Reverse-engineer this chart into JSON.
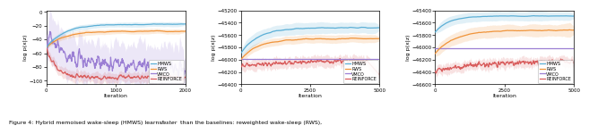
{
  "figure_caption_normal1": "Figure 4: Hybrid memoised wake-sleep (HMWS) learns ",
  "figure_caption_italic": "faster",
  "figure_caption_normal2": " than the baselines: reweighted wake-sleep (RWS),",
  "plots": [
    {
      "xlim": [
        0,
        2000
      ],
      "ylim": [
        -105,
        2
      ],
      "ylabel": "log p(x|z)",
      "xlabel": "Iteration",
      "yticks": [
        0,
        -20,
        -40,
        -60,
        -80,
        -100
      ],
      "xticks": [
        0,
        1000,
        2000
      ]
    },
    {
      "xlim": [
        0,
        5000
      ],
      "ylim": [
        -46400,
        -45200
      ],
      "ylabel": "log p(x|z)",
      "xlabel": "Iteration",
      "yticks": [
        -45200,
        -45400,
        -45600,
        -45800,
        -46000,
        -46200,
        -46400
      ],
      "xticks": [
        0,
        2500,
        5000
      ]
    },
    {
      "xlim": [
        0,
        5000
      ],
      "ylim": [
        -46600,
        -45400
      ],
      "ylabel": "log p(x|z)",
      "xlabel": "Iteration",
      "yticks": [
        -45400,
        -45600,
        -45800,
        -46000,
        -46200,
        -46400,
        -46600
      ],
      "xticks": [
        0,
        2500,
        5000
      ]
    }
  ],
  "colors": {
    "HMWS": "#5bafd6",
    "RWS": "#f0943a",
    "VMCO": "#9b7fd4",
    "REINFORCE": "#d95f5f"
  },
  "alpha_fill": 0.18
}
